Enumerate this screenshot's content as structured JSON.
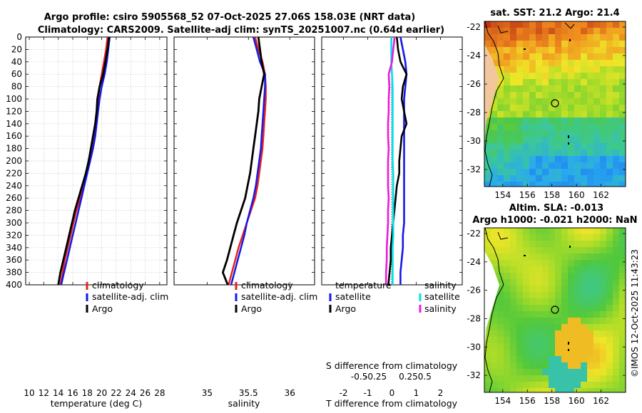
{
  "header": {
    "title_line1": "Argo profile: csiro 5905568_52 07-Oct-2025 27.06S 158.03E (NRT data)",
    "title_line2": "Climatology: CARS2009. Satellite-adj clim: synTS_20251007.nc (0.64d earlier)"
  },
  "colors": {
    "climatology": "#e8221e",
    "satellite": "#1418e6",
    "argo": "#000000",
    "t_satellite": "#1418e6",
    "t_argo": "#000000",
    "s_satellite": "#00e0e8",
    "s_argo": "#ee1ad8"
  },
  "chart_data": [
    {
      "type": "line",
      "id": "temperature",
      "xlabel": "temperature (deg C)",
      "ylabel": "depth",
      "xlim": [
        9.5,
        29
      ],
      "ylim": [
        400,
        0
      ],
      "xticks": [
        10,
        12,
        14,
        16,
        18,
        20,
        22,
        24,
        26,
        28
      ],
      "yticks": [
        0,
        20,
        40,
        60,
        80,
        100,
        120,
        140,
        160,
        180,
        200,
        220,
        240,
        260,
        280,
        300,
        320,
        340,
        360,
        380,
        400
      ],
      "grid": true,
      "legend": [
        "climatology",
        "satellite-adj. clim",
        "Argo"
      ],
      "depth": [
        0,
        20,
        40,
        60,
        80,
        100,
        120,
        140,
        160,
        180,
        200,
        220,
        240,
        260,
        280,
        300,
        320,
        340,
        360,
        380,
        400
      ],
      "series": [
        {
          "name": "climatology",
          "values": [
            20.8,
            20.6,
            20.3,
            20.0,
            19.7,
            19.5,
            19.3,
            19.1,
            18.9,
            18.6,
            18.2,
            17.8,
            17.4,
            17.0,
            16.5,
            16.1,
            15.7,
            15.3,
            14.9,
            14.6,
            14.3
          ]
        },
        {
          "name": "satellite-adj. clim",
          "values": [
            21.1,
            20.9,
            20.7,
            20.4,
            20.0,
            19.7,
            19.5,
            19.3,
            19.1,
            18.8,
            18.4,
            18.0,
            17.6,
            17.2,
            16.8,
            16.4,
            16.0,
            15.6,
            15.2,
            14.8,
            14.4
          ]
        },
        {
          "name": "Argo",
          "values": [
            21.0,
            20.8,
            20.5,
            20.2,
            19.7,
            19.4,
            19.3,
            19.1,
            18.8,
            18.5,
            18.2,
            17.8,
            17.3,
            16.8,
            16.3,
            15.9,
            15.5,
            15.1,
            14.7,
            14.3,
            14.0
          ]
        }
      ]
    },
    {
      "type": "line",
      "id": "salinity",
      "xlabel": "salinity",
      "ylabel": "depth",
      "xlim": [
        34.6,
        36.3
      ],
      "ylim": [
        400,
        0
      ],
      "xticks": [
        35,
        35.5,
        36
      ],
      "grid": false,
      "legend": [
        "climatology",
        "satellite-adj. clim",
        "Argo"
      ],
      "depth": [
        0,
        20,
        40,
        60,
        80,
        100,
        120,
        140,
        160,
        180,
        200,
        220,
        240,
        260,
        280,
        300,
        320,
        340,
        360,
        380,
        390,
        400
      ],
      "series": [
        {
          "name": "climatology",
          "values": [
            35.58,
            35.62,
            35.67,
            35.7,
            35.71,
            35.71,
            35.7,
            35.69,
            35.68,
            35.67,
            35.65,
            35.63,
            35.61,
            35.58,
            35.53,
            35.48,
            35.43,
            35.38,
            35.34,
            35.3,
            35.28,
            35.26
          ]
        },
        {
          "name": "satellite-adj. clim",
          "values": [
            35.56,
            35.6,
            35.64,
            35.7,
            35.7,
            35.69,
            35.68,
            35.67,
            35.66,
            35.65,
            35.63,
            35.61,
            35.59,
            35.56,
            35.52,
            35.48,
            35.45,
            35.41,
            35.37,
            35.33,
            35.31,
            35.29
          ]
        },
        {
          "name": "Argo",
          "values": [
            35.62,
            35.64,
            35.66,
            35.69,
            35.66,
            35.63,
            35.62,
            35.6,
            35.58,
            35.56,
            35.54,
            35.52,
            35.49,
            35.46,
            35.41,
            35.36,
            35.32,
            35.28,
            35.24,
            35.19,
            35.22,
            35.25
          ]
        }
      ]
    },
    {
      "type": "line",
      "id": "difference",
      "xlabel": "T difference from climatology",
      "top_xlabel": "S difference from climatology",
      "xlim": [
        -2.9,
        2.9
      ],
      "xticks": [
        -2,
        -1,
        0,
        1,
        2
      ],
      "top_xticks": [
        -0.5,
        -0.25,
        0,
        0.25,
        0.5
      ],
      "top_xtick_labels": [
        "-0.5",
        "-0.25",
        "",
        "0.25",
        "0.5"
      ],
      "grid": false,
      "legend_temperature_title": "temperature",
      "legend_salinity_title": "salinity",
      "legend_temperature": [
        "satellite",
        "Argo"
      ],
      "legend_salinity": [
        "satellite",
        "salinity"
      ],
      "depth": [
        0,
        20,
        40,
        60,
        80,
        100,
        120,
        140,
        160,
        180,
        200,
        220,
        240,
        260,
        280,
        300,
        320,
        340,
        360,
        380,
        400
      ],
      "series": [
        {
          "name": "temperature satellite",
          "values": [
            0.35,
            0.45,
            0.55,
            0.6,
            0.55,
            0.5,
            0.5,
            0.5,
            0.5,
            0.5,
            0.5,
            0.5,
            0.5,
            0.5,
            0.5,
            0.5,
            0.45,
            0.45,
            0.4,
            0.35,
            0.35
          ]
        },
        {
          "name": "temperature Argo",
          "values": [
            0.2,
            0.25,
            0.35,
            0.6,
            0.45,
            0.4,
            0.5,
            0.6,
            0.4,
            0.35,
            0.3,
            0.3,
            0.2,
            0.15,
            0.1,
            0.05,
            0.0,
            -0.05,
            -0.05,
            -0.1,
            -0.15
          ]
        },
        {
          "name": "salinity satellite",
          "values": [
            -0.01,
            -0.01,
            -0.01,
            0.0,
            0.01,
            0.01,
            0.01,
            0.01,
            0.01,
            0.01,
            0.01,
            0.02,
            0.02,
            0.02,
            0.02,
            0.02,
            0.02,
            0.01,
            0.01,
            0.01,
            0.01
          ]
        },
        {
          "name": "salinity Argo",
          "values": [
            0.04,
            0.02,
            0.0,
            -0.05,
            -0.04,
            -0.05,
            -0.05,
            -0.06,
            -0.06,
            -0.05,
            -0.06,
            -0.06,
            -0.06,
            -0.05,
            -0.06,
            -0.06,
            -0.07,
            -0.08,
            -0.08,
            -0.09,
            -0.09
          ]
        }
      ]
    }
  ],
  "maps": {
    "sst": {
      "title": "sat. SST: 21.2 Argo: 21.4",
      "yticks": [
        -22,
        -24,
        -26,
        -28,
        -30,
        -32
      ],
      "xticks": [
        154,
        156,
        158,
        160,
        162
      ]
    },
    "sla": {
      "title_line1": "Altim. SLA: -0.013",
      "title_line2": "Argo h1000: -0.021 h2000: NaN",
      "yticks": [
        -22,
        -24,
        -26,
        -28,
        -30,
        -32
      ],
      "xticks": [
        154,
        156,
        158,
        160,
        162
      ]
    }
  },
  "footer": {
    "credit": "©IMOS 12-Oct-2025 11:43:23"
  }
}
